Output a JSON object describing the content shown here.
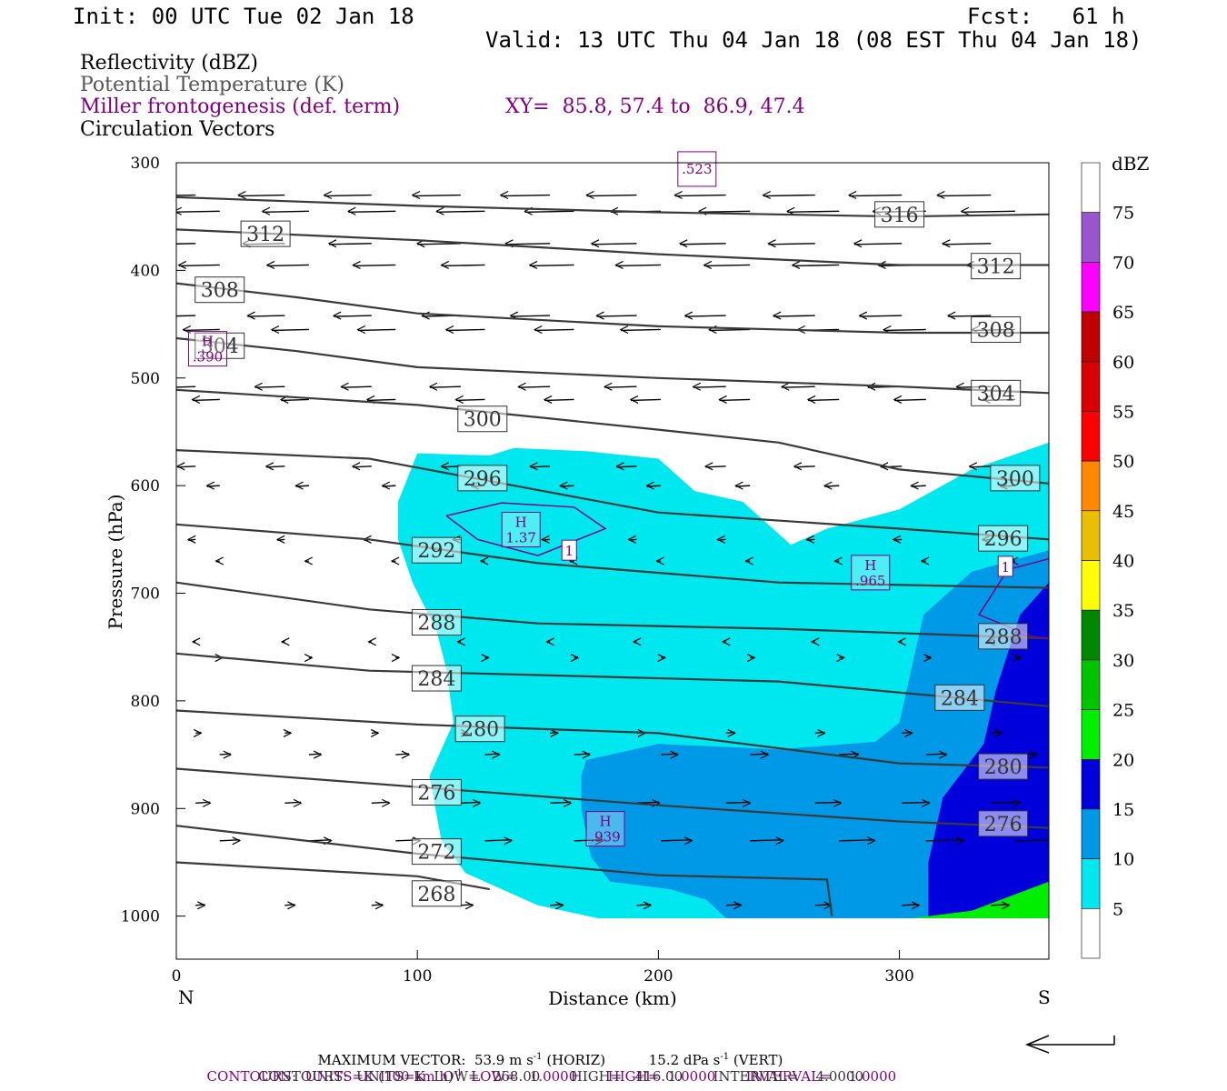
{
  "header": {
    "init": "Init: 00 UTC Tue 02 Jan 18",
    "fcst": "Fcst:   61 h",
    "valid": "Valid: 13 UTC Thu 04 Jan 18 (08 EST Thu 04 Jan 18)"
  },
  "fields": {
    "reflectivity": "Reflectivity (dBZ)",
    "theta": "Potential Temperature (K)",
    "frontogenesis": "Miller frontogenesis (def. term)",
    "vectors": "Circulation Vectors",
    "xy": "XY=  85.8, 57.4 to  86.9, 47.4"
  },
  "colors": {
    "refl_5": "#00e8ef",
    "refl_10": "#0099e8",
    "refl_15": "#0000dd",
    "refl_20": "#00ee00",
    "theta_line": "#3a3a3a",
    "fronto_line": "#800080"
  },
  "footer": {
    "max_vector_label": "MAXIMUM VECTOR:",
    "max_h": "53.9 m s",
    "max_h_unit": "(HORIZ)",
    "max_v": "15.2 dPa s",
    "max_v_unit": "(VERT)",
    "contours1_a": "CONTOURS:  UNITS=K (100 km h)",
    "contours1_b": "  LOW=   1.0000       HIGH=  1.0000       INTERVAL=    1.0000",
    "contours2": "CONTOURS:  UNITS=K  LOW=   268.00       HIGH=   416.00       INTERVAL=    4.0000",
    "exp": "-1"
  },
  "colorbar": {
    "title": "dBZ",
    "levels": [
      5,
      10,
      15,
      20,
      25,
      30,
      35,
      40,
      45,
      50,
      55,
      60,
      65,
      70,
      75
    ],
    "colors": [
      "#ffffff",
      "#00e8ef",
      "#0099e8",
      "#0000dd",
      "#00ee00",
      "#00c400",
      "#008800",
      "#ffff00",
      "#e8c000",
      "#ff8800",
      "#ff0000",
      "#d80000",
      "#c00000",
      "#ff00ff",
      "#9955cc",
      "#ffffff"
    ]
  },
  "chart_data": {
    "type": "cross-section",
    "xlabel": "Distance (km)",
    "ylabel": "Pressure (hPa)",
    "xlim": [
      0,
      362
    ],
    "ylim": [
      1040,
      300
    ],
    "xticks": [
      0,
      100,
      200,
      300
    ],
    "yticks": [
      300,
      400,
      500,
      600,
      700,
      800,
      900,
      1000
    ],
    "x_end_labels": {
      "left": "N",
      "right": "S"
    },
    "theta_contours": [
      {
        "value": 316,
        "points": [
          [
            0,
            332
          ],
          [
            100,
            340
          ],
          [
            200,
            346
          ],
          [
            300,
            350
          ],
          [
            362,
            348
          ]
        ],
        "labels": [
          [
            300,
            348
          ]
        ]
      },
      {
        "value": 312,
        "points": [
          [
            0,
            362
          ],
          [
            100,
            372
          ],
          [
            200,
            385
          ],
          [
            300,
            395
          ],
          [
            362,
            395
          ]
        ],
        "labels": [
          [
            37,
            366
          ],
          [
            340,
            396
          ]
        ]
      },
      {
        "value": 308,
        "points": [
          [
            0,
            412
          ],
          [
            50,
            425
          ],
          [
            100,
            440
          ],
          [
            200,
            452
          ],
          [
            300,
            458
          ],
          [
            362,
            458
          ]
        ],
        "labels": [
          [
            18,
            418
          ],
          [
            340,
            455
          ]
        ]
      },
      {
        "value": 304,
        "points": [
          [
            0,
            463
          ],
          [
            50,
            475
          ],
          [
            100,
            490
          ],
          [
            200,
            500
          ],
          [
            300,
            508
          ],
          [
            362,
            514
          ]
        ],
        "labels": [
          [
            18,
            470
          ],
          [
            340,
            514
          ]
        ]
      },
      {
        "value": 300,
        "points": [
          [
            0,
            511
          ],
          [
            100,
            525
          ],
          [
            200,
            548
          ],
          [
            250,
            560
          ],
          [
            300,
            585
          ],
          [
            362,
            598
          ]
        ],
        "labels": [
          [
            127,
            538
          ],
          [
            348,
            593
          ]
        ]
      },
      {
        "value": 296,
        "points": [
          [
            0,
            567
          ],
          [
            80,
            575
          ],
          [
            140,
            600
          ],
          [
            200,
            625
          ],
          [
            300,
            640
          ],
          [
            362,
            650
          ]
        ],
        "labels": [
          [
            127,
            593
          ],
          [
            343,
            649
          ]
        ]
      },
      {
        "value": 292,
        "points": [
          [
            0,
            636
          ],
          [
            80,
            650
          ],
          [
            150,
            672
          ],
          [
            250,
            690
          ],
          [
            362,
            695
          ]
        ],
        "labels": [
          [
            108,
            660
          ]
        ]
      },
      {
        "value": 288,
        "points": [
          [
            0,
            690
          ],
          [
            80,
            715
          ],
          [
            150,
            728
          ],
          [
            250,
            733
          ],
          [
            362,
            742
          ]
        ],
        "labels": [
          [
            108,
            727
          ],
          [
            343,
            740
          ]
        ]
      },
      {
        "value": 284,
        "points": [
          [
            0,
            756
          ],
          [
            80,
            772
          ],
          [
            150,
            776
          ],
          [
            250,
            782
          ],
          [
            362,
            805
          ]
        ],
        "labels": [
          [
            108,
            779
          ],
          [
            325,
            797
          ]
        ]
      },
      {
        "value": 280,
        "points": [
          [
            0,
            809
          ],
          [
            100,
            822
          ],
          [
            200,
            830
          ],
          [
            300,
            858
          ],
          [
            362,
            862
          ]
        ],
        "labels": [
          [
            126,
            826
          ],
          [
            343,
            861
          ]
        ]
      },
      {
        "value": 276,
        "points": [
          [
            0,
            863
          ],
          [
            100,
            880
          ],
          [
            200,
            897
          ],
          [
            300,
            912
          ],
          [
            362,
            918
          ]
        ],
        "labels": [
          [
            108,
            885
          ],
          [
            343,
            914
          ]
        ]
      },
      {
        "value": 272,
        "points": [
          [
            0,
            916
          ],
          [
            100,
            942
          ],
          [
            200,
            962
          ],
          [
            270,
            966
          ],
          [
            272,
            1000
          ]
        ],
        "labels": [
          [
            108,
            940
          ]
        ]
      },
      {
        "value": 268,
        "points": [
          [
            0,
            950
          ],
          [
            100,
            963
          ],
          [
            130,
            975
          ]
        ],
        "labels": [
          [
            108,
            979
          ]
        ]
      }
    ],
    "fronto_highs": [
      {
        "label": "H",
        "value": "1.37",
        "x": 143,
        "p": 640
      },
      {
        "label": "H",
        "value": ".965",
        "x": 288,
        "p": 680
      },
      {
        "label": "H",
        "value": ".939",
        "x": 178,
        "p": 918
      },
      {
        "label": "H",
        "value": ".390",
        "x": 13,
        "p": 472
      },
      {
        "label": "",
        "value": ".523",
        "x": 216,
        "p": 305
      }
    ],
    "fronto_contour_labels": [
      {
        "value": "1",
        "x": 163,
        "p": 660
      },
      {
        "value": "1",
        "x": 344,
        "p": 675
      }
    ]
  }
}
